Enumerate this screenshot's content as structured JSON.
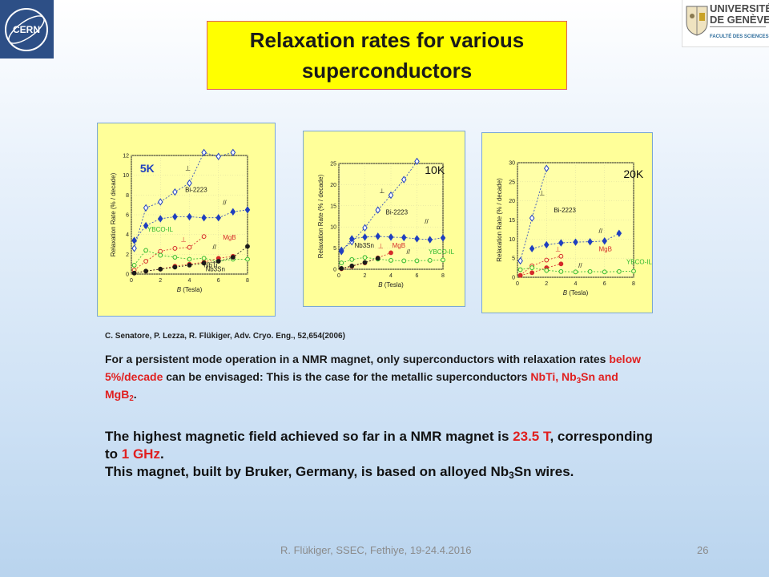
{
  "header": {
    "title": "Relaxation rates for various\nsuperconductors",
    "logo_left": "CERN",
    "logo_right": {
      "name_line1": "UNIVERSITÉ",
      "name_line2": "DE GENÈVE",
      "faculty": "FACULTÉ DES SCIENCES"
    }
  },
  "chart_data": [
    {
      "type": "scatter",
      "ylabel": "Relaxation Rate (% / decade)",
      "xlabel_symbol": "B",
      "xlabel_unit": "(Tesla)",
      "temperature": "5K",
      "xlim": [
        0,
        8
      ],
      "ylim": [
        0,
        12
      ],
      "xticks": [
        "0",
        "2",
        "4",
        "6",
        "8"
      ],
      "yticks": [
        "0",
        "2",
        "4",
        "6",
        "8",
        "10",
        "12"
      ],
      "labels": [
        {
          "text": "⊥",
          "x": 3.7,
          "y": 10.5,
          "color": "#1a1a1a"
        },
        {
          "text": "Bi-2223",
          "x": 3.7,
          "y": 8.3,
          "color": "#1a1a1a"
        },
        {
          "text": "//",
          "x": 6.3,
          "y": 7.0,
          "color": "#1a1a1a"
        },
        {
          "text": "YBCO-IL",
          "x": 1.1,
          "y": 4.3,
          "color": "#2eb82e"
        },
        {
          "text": "⊥",
          "x": 3.4,
          "y": 3.3,
          "color": "#d42a2a"
        },
        {
          "text": "MgB",
          "x": 6.3,
          "y": 3.5,
          "color": "#d42a2a"
        },
        {
          "text": "//",
          "x": 5.6,
          "y": 2.5,
          "color": "#1a1a1a"
        },
        {
          "text": "NbTi",
          "x": 5.0,
          "y": 0.7,
          "color": "#1a1a1a"
        },
        {
          "text": "Nb3Sn",
          "x": 5.1,
          "y": 0.3,
          "color": "#1a1a1a"
        }
      ],
      "series": [
        {
          "name": "Bi-2223 ⊥",
          "marker": "diamond-open",
          "color": "#1f3fbf",
          "x": [
            0.2,
            1,
            2,
            3,
            4,
            5,
            6,
            7
          ],
          "y": [
            2.6,
            6.7,
            7.3,
            8.3,
            9.2,
            12.3,
            11.9,
            12.3
          ]
        },
        {
          "name": "Bi-2223 //",
          "marker": "diamond-filled",
          "color": "#1f3fbf",
          "x": [
            0.2,
            1,
            2,
            3,
            4,
            5,
            6,
            7,
            8
          ],
          "y": [
            3.4,
            4.9,
            5.6,
            5.8,
            5.8,
            5.7,
            5.7,
            6.3,
            6.5
          ]
        },
        {
          "name": "MgB2 ⊥",
          "marker": "circle-open",
          "color": "#d42a2a",
          "x": [
            0.2,
            1,
            2,
            3,
            4,
            5
          ],
          "y": [
            0.4,
            1.3,
            2.3,
            2.6,
            2.7,
            3.8
          ]
        },
        {
          "name": "MgB2 //",
          "marker": "circle-filled",
          "color": "#d42a2a",
          "x": [
            0.2,
            1,
            2,
            3,
            4,
            5,
            6,
            7
          ],
          "y": [
            0.1,
            0.3,
            0.5,
            0.8,
            1.0,
            1.2,
            1.6,
            1.8
          ]
        },
        {
          "name": "YBCO-IL",
          "marker": "circle-open",
          "color": "#2eb82e",
          "x": [
            0.2,
            1,
            2,
            3,
            4,
            5,
            6,
            7,
            8
          ],
          "y": [
            0.9,
            2.4,
            1.9,
            1.7,
            1.5,
            1.6,
            1.3,
            1.5,
            1.5
          ]
        },
        {
          "name": "NbTi / Nb3Sn",
          "marker": "circle-filled",
          "color": "#1a1a1a",
          "x": [
            0.2,
            1,
            2,
            3,
            4,
            5,
            6,
            7,
            8
          ],
          "y": [
            0.1,
            0.3,
            0.5,
            0.7,
            0.9,
            1.1,
            1.3,
            1.7,
            2.8
          ]
        }
      ]
    },
    {
      "type": "scatter",
      "ylabel": "Relaxation Rate (% / decade)",
      "xlabel_symbol": "B",
      "xlabel_unit": "(Tesla)",
      "temperature": "10K",
      "xlim": [
        0,
        8
      ],
      "ylim": [
        0,
        25
      ],
      "xticks": [
        "0",
        "2",
        "4",
        "6",
        "8"
      ],
      "yticks": [
        "0",
        "5",
        "10",
        "15",
        "20",
        "25"
      ],
      "labels": [
        {
          "text": "⊥",
          "x": 3.1,
          "y": 18.0,
          "color": "#1a1a1a"
        },
        {
          "text": "Bi-2223",
          "x": 3.6,
          "y": 13.0,
          "color": "#1a1a1a"
        },
        {
          "text": "//",
          "x": 6.6,
          "y": 10.8,
          "color": "#1a1a1a"
        },
        {
          "text": "Nb3Sn",
          "x": 1.2,
          "y": 5.1,
          "color": "#1a1a1a"
        },
        {
          "text": "⊥",
          "x": 3.0,
          "y": 5.0,
          "color": "#d42a2a"
        },
        {
          "text": "MgB",
          "x": 4.1,
          "y": 5.1,
          "color": "#d42a2a"
        },
        {
          "text": "//",
          "x": 5.2,
          "y": 3.6,
          "color": "#1a1a1a"
        },
        {
          "text": "YBCO-IL",
          "x": 6.9,
          "y": 3.6,
          "color": "#2eb82e"
        }
      ],
      "series": [
        {
          "name": "Bi-2223 ⊥",
          "marker": "diamond-open",
          "color": "#1f3fbf",
          "x": [
            0.2,
            1,
            2,
            3,
            4,
            5,
            6
          ],
          "y": [
            4.5,
            6.5,
            9.8,
            14.0,
            17.5,
            21.2,
            25.5
          ]
        },
        {
          "name": "Bi-2223 //",
          "marker": "diamond-filled",
          "color": "#1f3fbf",
          "x": [
            0.2,
            1,
            2,
            3,
            4,
            5,
            6,
            7,
            8
          ],
          "y": [
            4.2,
            7.2,
            7.6,
            7.8,
            7.6,
            7.5,
            7.2,
            7.0,
            7.4
          ]
        },
        {
          "name": "MgB2",
          "marker": "circle-filled",
          "color": "#d42a2a",
          "x": [
            0.2,
            1,
            2,
            3,
            4
          ],
          "y": [
            0.1,
            0.7,
            1.5,
            2.7,
            3.9
          ]
        },
        {
          "name": "YBCO-IL",
          "marker": "circle-open",
          "color": "#2eb82e",
          "x": [
            0.2,
            1,
            2,
            3,
            4,
            5,
            6,
            7,
            8
          ],
          "y": [
            1.5,
            2.3,
            2.8,
            2.4,
            2.1,
            2.0,
            2.0,
            2.1,
            2.2
          ]
        },
        {
          "name": "Nb3Sn",
          "marker": "circle-filled",
          "color": "#1a1a1a",
          "x": [
            0.2,
            1,
            2,
            3
          ],
          "y": [
            0.2,
            0.8,
            1.6,
            2.6
          ]
        }
      ]
    },
    {
      "type": "scatter",
      "ylabel": "Relaxation Rate (% / decade)",
      "xlabel_symbol": "B",
      "xlabel_unit": "(Tesla)",
      "temperature": "20K",
      "xlim": [
        0,
        8
      ],
      "ylim": [
        0,
        30
      ],
      "xticks": [
        "0",
        "2",
        "4",
        "6",
        "8"
      ],
      "yticks": [
        "0",
        "5",
        "10",
        "15",
        "20",
        "25",
        "30"
      ],
      "labels": [
        {
          "text": "⊥",
          "x": 1.5,
          "y": 21.5,
          "color": "#1a1a1a"
        },
        {
          "text": "Bi-2223",
          "x": 2.5,
          "y": 17.0,
          "color": "#1a1a1a"
        },
        {
          "text": "//",
          "x": 5.6,
          "y": 11.5,
          "color": "#1a1a1a"
        },
        {
          "text": "⊥",
          "x": 2.6,
          "y": 6.8,
          "color": "#d42a2a"
        },
        {
          "text": "MgB",
          "x": 5.6,
          "y": 6.8,
          "color": "#d42a2a"
        },
        {
          "text": "//",
          "x": 4.2,
          "y": 2.5,
          "color": "#1a1a1a"
        },
        {
          "text": "YBCO-IL",
          "x": 7.5,
          "y": 3.5,
          "color": "#2eb82e"
        }
      ],
      "series": [
        {
          "name": "Bi-2223 ⊥",
          "marker": "diamond-open",
          "color": "#1f3fbf",
          "x": [
            0.2,
            1,
            2
          ],
          "y": [
            4.3,
            15.5,
            28.5
          ]
        },
        {
          "name": "Bi-2223 //",
          "marker": "diamond-filled",
          "color": "#1f3fbf",
          "x": [
            1,
            2,
            3,
            4,
            5,
            6,
            7
          ],
          "y": [
            7.5,
            8.5,
            9.0,
            9.2,
            9.3,
            9.5,
            11.5
          ]
        },
        {
          "name": "MgB2 ⊥",
          "marker": "circle-open",
          "color": "#d42a2a",
          "x": [
            0.2,
            1,
            2,
            3
          ],
          "y": [
            0.5,
            3.0,
            4.5,
            5.5
          ]
        },
        {
          "name": "MgB2 //",
          "marker": "circle-filled",
          "color": "#d42a2a",
          "x": [
            0.2,
            1,
            2,
            3
          ],
          "y": [
            0.5,
            1.2,
            2.5,
            3.5
          ]
        },
        {
          "name": "YBCO-IL",
          "marker": "circle-open",
          "color": "#2eb82e",
          "x": [
            0.2,
            1,
            2,
            3,
            4,
            5,
            6,
            7,
            8
          ],
          "y": [
            2.0,
            2.5,
            1.8,
            1.5,
            1.4,
            1.5,
            1.4,
            1.5,
            1.6
          ]
        }
      ]
    }
  ],
  "citation": "C. Senatore, P. Lezza, R. Flükiger, Adv. Cryo. Eng., 52,654(2006)",
  "paragraph1": {
    "t1": "For a persistent mode operation in a NMR magnet, only superconductors with relaxation rates ",
    "t2": "below 5%/decade",
    "t3": " can be envisaged: This is the case for the metallic superconductors ",
    "t4": "NbTi, Nb",
    "t5": "3",
    "t6": "Sn and MgB",
    "t7": "2",
    "t8": "."
  },
  "paragraph2": {
    "t1": "The highest magnetic field achieved so far in a NMR magnet is ",
    "t2": "23.5 T",
    "t3": ", corresponding to ",
    "t4": "1 GHz",
    "t5": ".",
    "t6": "This magnet, built by Bruker, Germany, is based on alloyed Nb",
    "t7": "3",
    "t8": "Sn wires."
  },
  "footer": {
    "text": "R. Flükiger, SSEC, Fethiye, 19-24.4.2016",
    "page": "26"
  },
  "colors": {
    "title_bg": "#ffff00",
    "chart_bg": "#ffff99",
    "highlight": "#e02020"
  }
}
